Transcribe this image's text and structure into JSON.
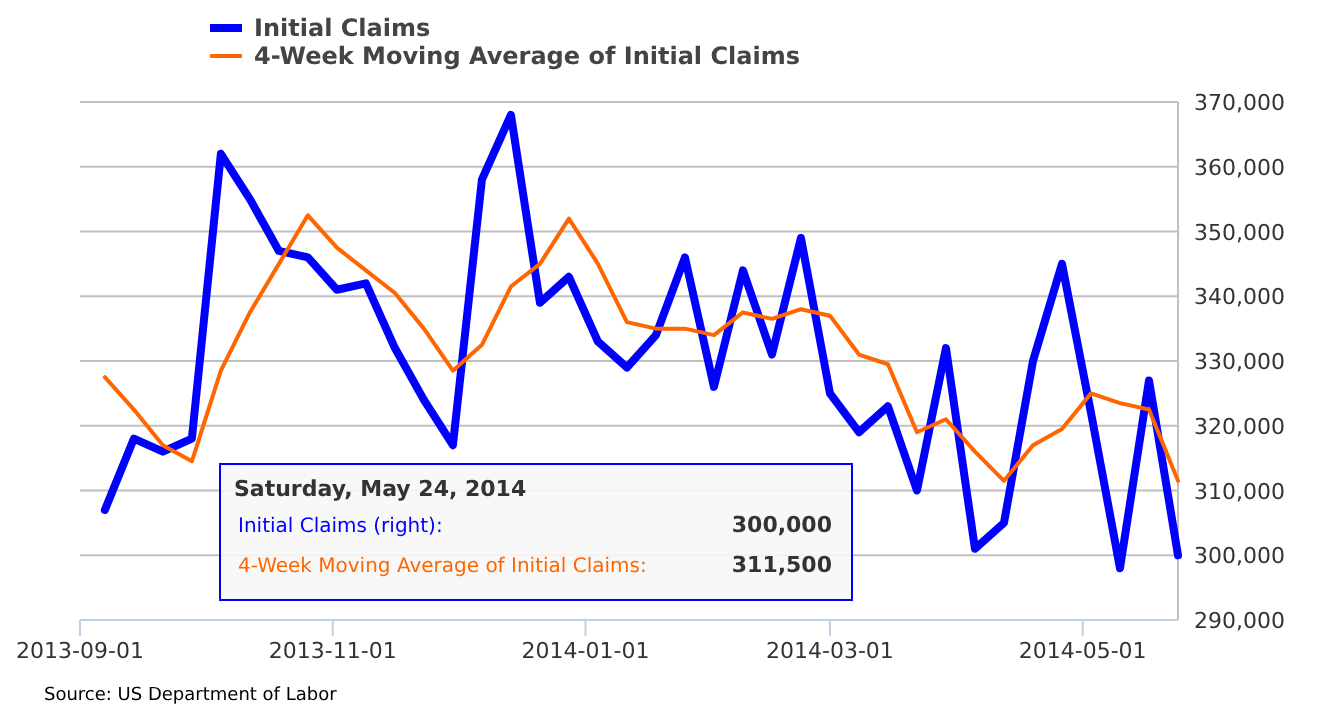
{
  "chart_data": {
    "type": "line",
    "x": [
      "2013-09-07",
      "2013-09-14",
      "2013-09-21",
      "2013-09-28",
      "2013-10-05",
      "2013-10-12",
      "2013-10-19",
      "2013-10-26",
      "2013-11-02",
      "2013-11-09",
      "2013-11-16",
      "2013-11-23",
      "2013-11-30",
      "2013-12-07",
      "2013-12-14",
      "2013-12-21",
      "2013-12-28",
      "2014-01-04",
      "2014-01-11",
      "2014-01-18",
      "2014-01-25",
      "2014-02-01",
      "2014-02-08",
      "2014-02-15",
      "2014-02-22",
      "2014-03-01",
      "2014-03-08",
      "2014-03-15",
      "2014-03-22",
      "2014-03-29",
      "2014-04-05",
      "2014-04-12",
      "2014-04-19",
      "2014-04-26",
      "2014-05-03",
      "2014-05-10",
      "2014-05-17",
      "2014-05-24"
    ],
    "series": [
      {
        "name": "Initial Claims",
        "color": "#0000ff",
        "values": [
          307000,
          318000,
          316000,
          318000,
          362000,
          355000,
          347000,
          346000,
          341000,
          342000,
          332000,
          324000,
          317000,
          358000,
          368000,
          339000,
          343000,
          333000,
          329000,
          334000,
          346000,
          326000,
          344000,
          331000,
          349000,
          325000,
          319000,
          323000,
          310000,
          332000,
          301000,
          305000,
          330000,
          345000,
          322000,
          298000,
          327000,
          300000
        ]
      },
      {
        "name": "4-Week Moving Average of Initial Claims",
        "color": "#ff6600",
        "values": [
          327500,
          322500,
          317000,
          314500,
          328500,
          337500,
          345000,
          352500,
          347500,
          344000,
          340500,
          335000,
          328500,
          332500,
          341500,
          345000,
          352000,
          345000,
          336000,
          335000,
          335000,
          334000,
          337500,
          336500,
          338000,
          337000,
          331000,
          329500,
          319000,
          321000,
          316000,
          311500,
          317000,
          319500,
          325000,
          323500,
          322500,
          311500
        ]
      }
    ],
    "xlim": [
      "2013-09-01",
      "2014-05-24"
    ],
    "xticks": [
      "2013-09-01",
      "2013-11-01",
      "2014-01-01",
      "2014-03-01",
      "2014-05-01"
    ],
    "ylim": [
      290000,
      370000
    ],
    "yticks": [
      {
        "value": 290000,
        "label": "290,000"
      },
      {
        "value": 300000,
        "label": "300,000"
      },
      {
        "value": 310000,
        "label": "310,000"
      },
      {
        "value": 320000,
        "label": "320,000"
      },
      {
        "value": 330000,
        "label": "330,000"
      },
      {
        "value": 340000,
        "label": "340,000"
      },
      {
        "value": 350000,
        "label": "350,000"
      },
      {
        "value": 360000,
        "label": "360,000"
      },
      {
        "value": 370000,
        "label": "370,000"
      }
    ],
    "grid": "y",
    "legend": "top left",
    "annotations": [
      "Source: US Department of Labor",
      "Saturday, May 24, 2014",
      "Initial Claims (right):",
      "300,000",
      "4-Week Moving Average of Initial Claims:",
      "311,500"
    ]
  }
}
